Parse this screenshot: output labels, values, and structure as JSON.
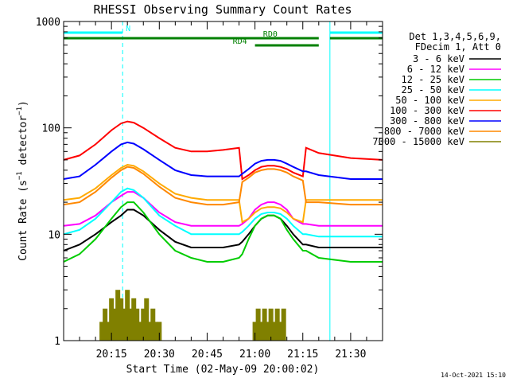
{
  "chart_data": {
    "type": "line",
    "title": "RHESSI Observing Summary Count Rates",
    "xlabel": "Start Time (02-May-09 20:00:02)",
    "ylabel": "Count Rate (s⁻¹ detector⁻¹)",
    "ylabel_prefix": "Count Rate (s",
    "ylabel_exp1": "−1",
    "ylabel_mid": " detector",
    "ylabel_exp2": "−1",
    "ylabel_suffix": ")",
    "y_scale": "log",
    "ylim": [
      1,
      1000
    ],
    "xlim_minutes": [
      0,
      100
    ],
    "x_ticks": [
      {
        "minute": 15,
        "label": "20:15"
      },
      {
        "minute": 30,
        "label": "20:30"
      },
      {
        "minute": 45,
        "label": "20:45"
      },
      {
        "minute": 60,
        "label": "21:00"
      },
      {
        "minute": 75,
        "label": "21:15"
      },
      {
        "minute": 90,
        "label": "21:30"
      }
    ],
    "y_ticks": [
      {
        "value": 1,
        "label": "1"
      },
      {
        "value": 10,
        "label": "10"
      },
      {
        "value": 100,
        "label": "100"
      },
      {
        "value": 1000,
        "label": "1000"
      }
    ],
    "legend_header": [
      "Det 1,3,4,5,6,9,",
      "FDecim 1, Att 0"
    ],
    "series": [
      {
        "name": "3 - 6 keV",
        "color": "#000000",
        "x": [
          0,
          5,
          10,
          15,
          18,
          20,
          22,
          25,
          30,
          35,
          40,
          45,
          50,
          55,
          56,
          58,
          60,
          62,
          64,
          66,
          68,
          70,
          72,
          75,
          76,
          80,
          90,
          100
        ],
        "y": [
          7,
          8,
          10,
          13,
          15,
          17,
          17,
          15,
          11,
          8.5,
          7.5,
          7.5,
          7.5,
          8,
          8.5,
          10,
          12,
          14,
          15,
          15,
          14,
          12,
          10,
          8,
          8,
          7.5,
          7.5,
          7.5
        ]
      },
      {
        "name": "6 - 12 keV",
        "color": "#ff00ff",
        "x": [
          0,
          5,
          10,
          15,
          18,
          20,
          22,
          25,
          30,
          35,
          40,
          45,
          50,
          55,
          56,
          58,
          60,
          62,
          64,
          66,
          68,
          70,
          72,
          75,
          76,
          80,
          90,
          100
        ],
        "y": [
          12,
          12.5,
          15,
          20,
          23,
          25,
          25,
          22,
          16,
          13,
          12,
          12,
          12,
          12,
          12.5,
          14,
          17,
          19,
          20,
          20,
          19,
          17,
          14,
          12.5,
          12.5,
          12,
          12,
          12
        ]
      },
      {
        "name": "12 - 25 keV",
        "color": "#00cc00",
        "x": [
          0,
          5,
          10,
          15,
          18,
          20,
          22,
          25,
          30,
          35,
          40,
          45,
          50,
          55,
          56,
          58,
          60,
          62,
          64,
          66,
          68,
          70,
          72,
          75,
          76,
          80,
          90,
          100
        ],
        "y": [
          5.5,
          6.5,
          9,
          14,
          18,
          20,
          20,
          16,
          10,
          7,
          6,
          5.5,
          5.5,
          6,
          6.5,
          9,
          12,
          14,
          15,
          15,
          14,
          11,
          9,
          7,
          7,
          6,
          5.5,
          5.5
        ]
      },
      {
        "name": "25 - 50 keV",
        "color": "#00ffff",
        "x": [
          0,
          5,
          10,
          15,
          18,
          20,
          22,
          25,
          30,
          35,
          40,
          45,
          50,
          55,
          56,
          58,
          60,
          62,
          64,
          66,
          68,
          70,
          72,
          75,
          76,
          80,
          90,
          100
        ],
        "y": [
          10,
          11,
          14,
          20,
          25,
          27,
          26,
          22,
          15,
          12,
          10,
          10,
          10,
          10,
          10.5,
          12,
          14,
          15.5,
          16,
          16,
          15.5,
          14,
          12,
          10,
          10,
          9.5,
          9.5,
          9.5
        ]
      },
      {
        "name": "50 - 100 keV",
        "color": "#ffaa00",
        "x": [
          0,
          5,
          10,
          15,
          18,
          20,
          22,
          25,
          30,
          35,
          40,
          45,
          50,
          55,
          56,
          58,
          60,
          62,
          64,
          66,
          68,
          70,
          72,
          75,
          76,
          80,
          90,
          100
        ],
        "y": [
          21,
          22,
          27,
          36,
          42,
          45,
          44,
          39,
          30,
          24,
          22,
          21,
          21,
          21,
          13,
          14,
          16,
          17.5,
          18,
          18,
          17.5,
          16,
          14,
          13,
          21,
          21,
          21,
          21
        ]
      },
      {
        "name": "100 - 300 keV",
        "color": "#ff0000",
        "x": [
          0,
          5,
          10,
          15,
          18,
          20,
          22,
          25,
          30,
          35,
          40,
          45,
          50,
          55,
          56,
          58,
          60,
          62,
          64,
          66,
          68,
          70,
          72,
          75,
          76,
          80,
          90,
          100
        ],
        "y": [
          50,
          55,
          70,
          95,
          110,
          115,
          112,
          100,
          80,
          65,
          60,
          60,
          62,
          65,
          33,
          36,
          40,
          43,
          44,
          44,
          43,
          41,
          38,
          35,
          65,
          58,
          52,
          50
        ]
      },
      {
        "name": "300 - 800 keV",
        "color": "#0000ff",
        "x": [
          0,
          5,
          10,
          15,
          18,
          20,
          22,
          25,
          30,
          35,
          40,
          45,
          50,
          55,
          56,
          58,
          60,
          62,
          64,
          66,
          68,
          70,
          72,
          75,
          76,
          80,
          90,
          100
        ],
        "y": [
          33,
          35,
          45,
          60,
          70,
          73,
          71,
          63,
          50,
          40,
          36,
          35,
          35,
          35,
          37,
          41,
          46,
          49,
          50,
          50,
          49,
          46,
          43,
          39,
          39,
          36,
          33,
          33
        ]
      },
      {
        "name": "800 - 7000 keV",
        "color": "#ff8800",
        "x": [
          0,
          5,
          10,
          15,
          18,
          20,
          22,
          25,
          30,
          35,
          40,
          45,
          50,
          55,
          56,
          58,
          60,
          62,
          64,
          66,
          68,
          70,
          72,
          75,
          76,
          80,
          90,
          100
        ],
        "y": [
          19,
          20,
          25,
          34,
          40,
          43,
          42,
          37,
          28,
          22,
          20,
          19,
          19,
          20,
          31,
          34,
          38,
          40,
          41,
          41,
          40,
          38,
          35,
          32,
          20,
          20,
          19,
          19
        ]
      },
      {
        "name": "7000 - 15000 keV",
        "color": "#808000",
        "x": [
          12,
          13,
          14,
          15,
          16,
          17,
          18,
          19,
          20,
          21,
          22,
          23,
          24,
          25,
          26,
          27,
          28,
          29,
          30,
          60,
          61,
          62,
          63,
          64,
          65,
          66,
          67,
          68,
          69
        ],
        "y": [
          1.5,
          2,
          1.5,
          2.5,
          2,
          3,
          2.5,
          2,
          3,
          2,
          2.5,
          2,
          1.5,
          2,
          2.5,
          1.5,
          2,
          1.5,
          1.5,
          1.5,
          2,
          1.5,
          2,
          1.5,
          2,
          1.5,
          2,
          1.5,
          2
        ]
      }
    ],
    "state_bars": [
      {
        "label": "N",
        "color": "#00ffff",
        "segments": [
          [
            0,
            18.5
          ],
          [
            83.5,
            100
          ]
        ]
      },
      {
        "label": "RD0",
        "color": "#008000",
        "segments": [
          [
            0,
            80
          ],
          [
            83.5,
            100
          ]
        ]
      },
      {
        "label": "RD4",
        "color": "#008000",
        "segments": [
          [
            60,
            80
          ]
        ]
      }
    ],
    "vertical_markers": [
      {
        "minute": 18.5,
        "color": "#00ffff",
        "style": "dashed"
      },
      {
        "minute": 83.5,
        "color": "#00ffff",
        "style": "solid"
      },
      {
        "minute": 100,
        "color": "#00ffff",
        "style": "dashed"
      }
    ]
  },
  "footer_timestamp": "14-Oct-2021 15:10"
}
